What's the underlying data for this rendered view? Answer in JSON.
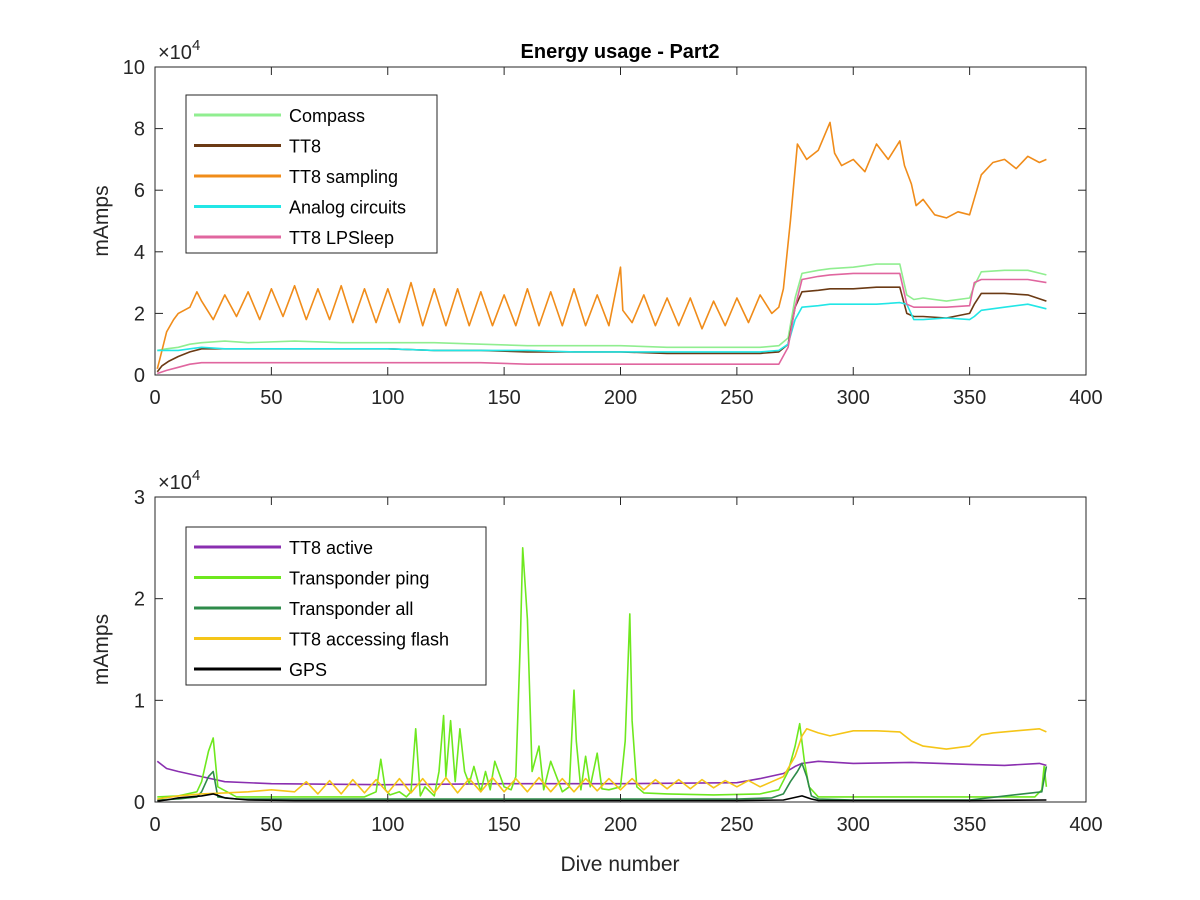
{
  "figure": {
    "title": "Energy usage - Part2",
    "xlabel": "Dive number",
    "exponent_label": "×10",
    "exponent_power": "4"
  },
  "chart_data": [
    {
      "type": "line",
      "title": "Energy usage - Part2",
      "xlabel": "",
      "ylabel": "mAmps",
      "xlim": [
        0,
        400
      ],
      "ylim": [
        0,
        100000
      ],
      "x_ticks": [
        0,
        50,
        100,
        150,
        200,
        250,
        300,
        350,
        400
      ],
      "y_ticks": [
        0,
        20000,
        40000,
        60000,
        80000,
        100000
      ],
      "y_tick_labels": [
        "0",
        "2",
        "4",
        "6",
        "8",
        "10"
      ],
      "y_multiplier": "×10^4",
      "grid": false,
      "legend_position": "top-left",
      "series": [
        {
          "name": "Compass",
          "color": "#90ee90",
          "x": [
            1,
            5,
            10,
            15,
            20,
            30,
            40,
            60,
            80,
            100,
            120,
            140,
            160,
            180,
            200,
            220,
            240,
            260,
            268,
            272,
            275,
            278,
            285,
            290,
            300,
            310,
            320,
            323,
            326,
            330,
            340,
            350,
            352,
            355,
            365,
            375,
            383
          ],
          "y": [
            8000,
            8500,
            9000,
            10000,
            10500,
            11000,
            10500,
            11000,
            10500,
            10500,
            10500,
            10000,
            9500,
            9500,
            9500,
            9000,
            9000,
            9000,
            9500,
            12000,
            25000,
            33000,
            34000,
            34500,
            35000,
            36000,
            36000,
            26000,
            24500,
            25000,
            24000,
            25000,
            29000,
            33500,
            34000,
            34000,
            32500
          ]
        },
        {
          "name": "TT8",
          "color": "#6b3a14",
          "x": [
            1,
            3,
            6,
            10,
            15,
            20,
            30,
            40,
            60,
            80,
            100,
            120,
            140,
            160,
            180,
            200,
            220,
            240,
            260,
            268,
            272,
            275,
            278,
            285,
            290,
            300,
            310,
            320,
            323,
            326,
            330,
            340,
            350,
            352,
            355,
            365,
            375,
            383
          ],
          "y": [
            1000,
            3000,
            4500,
            6000,
            7500,
            8500,
            8500,
            8500,
            8500,
            8500,
            8500,
            8000,
            8000,
            7500,
            7500,
            7500,
            7000,
            7000,
            7000,
            7500,
            10000,
            22000,
            27000,
            27500,
            28000,
            28000,
            28500,
            28500,
            20000,
            19000,
            19000,
            18500,
            20000,
            23000,
            26500,
            26500,
            26000,
            24000
          ]
        },
        {
          "name": "TT8 sampling",
          "color": "#f08c1a",
          "x": [
            1,
            2,
            5,
            8,
            10,
            15,
            18,
            20,
            25,
            30,
            35,
            40,
            45,
            50,
            55,
            60,
            65,
            70,
            75,
            80,
            85,
            90,
            95,
            100,
            105,
            110,
            115,
            120,
            125,
            130,
            135,
            140,
            145,
            150,
            155,
            160,
            165,
            170,
            175,
            180,
            185,
            190,
            195,
            200,
            201,
            205,
            210,
            215,
            220,
            225,
            230,
            235,
            240,
            245,
            250,
            255,
            260,
            265,
            268,
            270,
            273,
            276,
            280,
            285,
            290,
            292,
            295,
            300,
            305,
            310,
            315,
            320,
            322,
            325,
            327,
            330,
            335,
            340,
            345,
            350,
            355,
            360,
            365,
            370,
            375,
            380,
            383
          ],
          "y": [
            2000,
            5000,
            14000,
            18000,
            20000,
            22000,
            27000,
            24000,
            18000,
            26000,
            19000,
            27000,
            18000,
            28000,
            19000,
            29000,
            18000,
            28000,
            18000,
            29000,
            17000,
            28000,
            17000,
            28000,
            17000,
            30000,
            16000,
            28000,
            16000,
            28000,
            16000,
            27000,
            16000,
            26000,
            16000,
            28000,
            16000,
            27000,
            16000,
            28000,
            16000,
            26000,
            16000,
            35000,
            21000,
            17000,
            26000,
            16000,
            25000,
            16000,
            25000,
            15000,
            24000,
            16000,
            25000,
            17000,
            26000,
            20000,
            22000,
            28000,
            50000,
            75000,
            70000,
            73000,
            82000,
            72000,
            68000,
            70000,
            66000,
            75000,
            70000,
            76000,
            68000,
            62000,
            55000,
            57000,
            52000,
            51000,
            53000,
            52000,
            65000,
            69000,
            70000,
            67000,
            71000,
            69000,
            70000
          ]
        },
        {
          "name": "Analog circuits",
          "color": "#22e6e6",
          "x": [
            1,
            5,
            10,
            15,
            20,
            30,
            40,
            60,
            80,
            100,
            120,
            140,
            160,
            180,
            200,
            220,
            240,
            260,
            268,
            272,
            275,
            278,
            285,
            290,
            300,
            310,
            320,
            323,
            326,
            330,
            340,
            350,
            352,
            355,
            365,
            375,
            383
          ],
          "y": [
            8000,
            8000,
            8000,
            8500,
            9000,
            8500,
            8500,
            8500,
            8500,
            8500,
            8000,
            8000,
            8000,
            7500,
            7500,
            7500,
            7500,
            7500,
            8000,
            10000,
            18000,
            22000,
            22500,
            23000,
            23000,
            23000,
            23500,
            23000,
            18000,
            18000,
            18500,
            18000,
            19000,
            21000,
            22000,
            23000,
            21500
          ]
        },
        {
          "name": "TT8 LPSleep",
          "color": "#e0669f",
          "x": [
            1,
            5,
            10,
            15,
            20,
            30,
            40,
            60,
            80,
            100,
            120,
            140,
            160,
            180,
            200,
            220,
            240,
            260,
            268,
            272,
            275,
            278,
            285,
            290,
            300,
            310,
            320,
            323,
            326,
            330,
            340,
            350,
            352,
            355,
            365,
            375,
            383
          ],
          "y": [
            500,
            1500,
            2500,
            3500,
            4000,
            4000,
            4000,
            4000,
            4000,
            4000,
            4000,
            4000,
            3500,
            3500,
            3500,
            3500,
            3500,
            3500,
            3500,
            9000,
            22000,
            31000,
            32000,
            32500,
            33000,
            33000,
            33000,
            23000,
            22000,
            22000,
            22000,
            22500,
            30000,
            31000,
            31000,
            31000,
            30000
          ]
        }
      ]
    },
    {
      "type": "line",
      "title": "",
      "xlabel": "Dive number",
      "ylabel": "mAmps",
      "xlim": [
        0,
        400
      ],
      "ylim": [
        0,
        30000
      ],
      "x_ticks": [
        0,
        50,
        100,
        150,
        200,
        250,
        300,
        350,
        400
      ],
      "y_ticks": [
        0,
        10000,
        20000,
        30000
      ],
      "y_tick_labels": [
        "0",
        "1",
        "2",
        "3"
      ],
      "y_multiplier": "×10^4",
      "grid": false,
      "legend_position": "top-left",
      "series": [
        {
          "name": "TT8 active",
          "color": "#8a2fb0",
          "x": [
            1,
            5,
            10,
            20,
            30,
            50,
            100,
            150,
            200,
            250,
            260,
            270,
            275,
            278,
            285,
            300,
            325,
            350,
            365,
            380,
            383
          ],
          "y": [
            4000,
            3300,
            3000,
            2500,
            2000,
            1800,
            1700,
            1800,
            1800,
            1900,
            2300,
            2800,
            3500,
            3800,
            4000,
            3800,
            3900,
            3700,
            3600,
            3800,
            3600
          ]
        },
        {
          "name": "Transponder ping",
          "color": "#6ee81e",
          "x": [
            1,
            10,
            18,
            20,
            23,
            25,
            27,
            35,
            50,
            70,
            90,
            95,
            97,
            99,
            101,
            105,
            108,
            110,
            112,
            114,
            116,
            120,
            122,
            124,
            125,
            127,
            129,
            131,
            133,
            135,
            137,
            140,
            142,
            144,
            146,
            150,
            153,
            155,
            157,
            158,
            160,
            162,
            165,
            167,
            170,
            175,
            178,
            180,
            181,
            183,
            185,
            187,
            190,
            192,
            195,
            200,
            202,
            204,
            205,
            207,
            210,
            220,
            240,
            260,
            268,
            272,
            275,
            277,
            279,
            281,
            285,
            300,
            330,
            360,
            378,
            381,
            382,
            383
          ],
          "y": [
            500,
            600,
            1000,
            2000,
            5000,
            6300,
            1500,
            500,
            500,
            500,
            500,
            1000,
            4200,
            1200,
            700,
            1000,
            500,
            1000,
            7200,
            600,
            1500,
            600,
            3000,
            8500,
            2500,
            8000,
            2000,
            7200,
            3000,
            1800,
            3500,
            1000,
            3000,
            1200,
            4000,
            1500,
            1200,
            2500,
            16000,
            25000,
            18000,
            3000,
            5500,
            1200,
            4000,
            1000,
            1500,
            11000,
            6000,
            1200,
            4500,
            1500,
            4800,
            1300,
            1200,
            1500,
            6000,
            18500,
            8000,
            1500,
            900,
            800,
            700,
            800,
            1200,
            3000,
            5500,
            7700,
            4000,
            1500,
            500,
            500,
            500,
            500,
            500,
            1200,
            3500,
            1500
          ]
        },
        {
          "name": "Transponder all",
          "color": "#2e8b4a",
          "x": [
            1,
            10,
            18,
            20,
            23,
            25,
            27,
            35,
            60,
            100,
            150,
            200,
            250,
            265,
            270,
            273,
            276,
            278,
            280,
            282,
            285,
            300,
            350,
            381,
            383
          ],
          "y": [
            200,
            300,
            500,
            1000,
            2500,
            3000,
            500,
            300,
            300,
            300,
            300,
            300,
            300,
            400,
            800,
            2000,
            3000,
            3800,
            2500,
            600,
            300,
            200,
            200,
            1000,
            3500
          ]
        },
        {
          "name": "TT8 accessing flash",
          "color": "#f5c518",
          "x": [
            1,
            10,
            20,
            30,
            40,
            50,
            60,
            65,
            70,
            75,
            80,
            85,
            90,
            95,
            100,
            105,
            110,
            115,
            120,
            125,
            130,
            135,
            140,
            145,
            150,
            155,
            160,
            165,
            170,
            175,
            180,
            185,
            190,
            195,
            200,
            205,
            210,
            215,
            220,
            225,
            230,
            235,
            240,
            245,
            250,
            255,
            260,
            265,
            270,
            275,
            278,
            280,
            285,
            290,
            300,
            310,
            320,
            325,
            330,
            340,
            350,
            355,
            360,
            370,
            380,
            383
          ],
          "y": [
            300,
            600,
            800,
            900,
            1000,
            1200,
            1000,
            2000,
            800,
            2100,
            800,
            2200,
            900,
            2200,
            900,
            2300,
            900,
            2300,
            900,
            2400,
            900,
            2300,
            1000,
            2400,
            1000,
            2300,
            1000,
            2400,
            1000,
            2300,
            1000,
            2300,
            1100,
            2300,
            1200,
            2300,
            1200,
            2200,
            1300,
            2200,
            1300,
            2200,
            1400,
            2100,
            1500,
            2100,
            1500,
            2000,
            2500,
            4500,
            6500,
            7200,
            6800,
            6500,
            7000,
            7000,
            6900,
            6000,
            5500,
            5200,
            5500,
            6600,
            6800,
            7000,
            7200,
            6900
          ]
        },
        {
          "name": "GPS",
          "color": "#000000",
          "x": [
            1,
            5,
            10,
            20,
            25,
            30,
            40,
            60,
            100,
            150,
            200,
            250,
            270,
            278,
            282,
            285,
            300,
            350,
            383
          ],
          "y": [
            100,
            200,
            400,
            600,
            800,
            400,
            200,
            150,
            150,
            150,
            150,
            150,
            200,
            600,
            300,
            150,
            150,
            150,
            200
          ]
        }
      ]
    }
  ]
}
